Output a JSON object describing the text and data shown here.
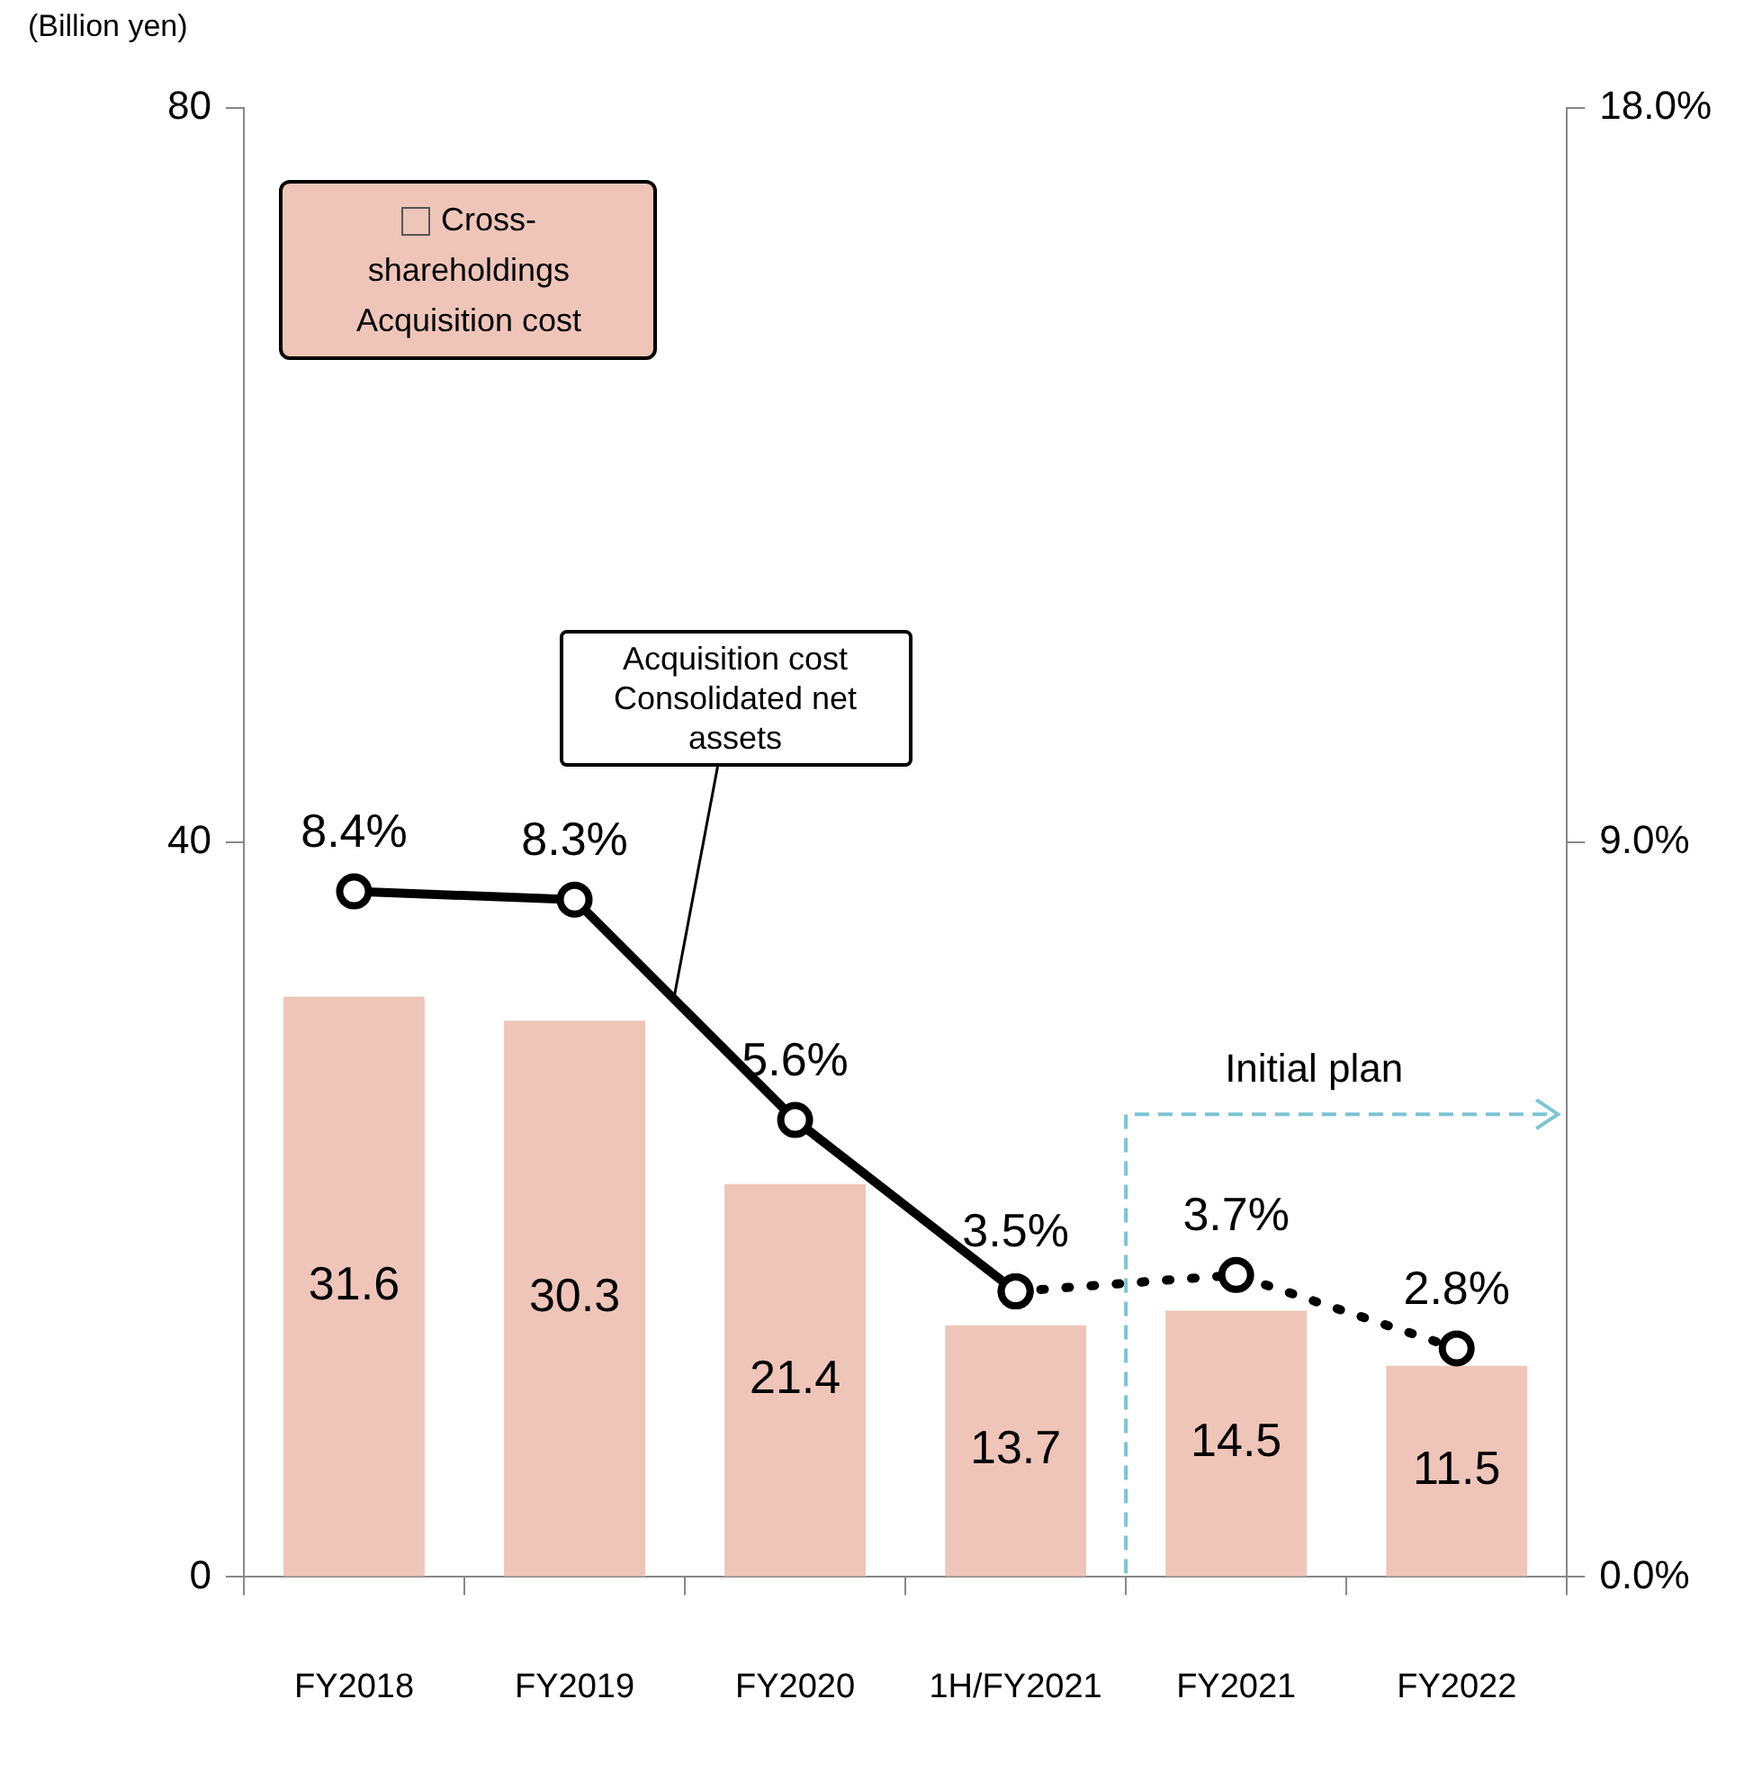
{
  "chart_data": {
    "type": "bar",
    "categories": [
      "FY2018",
      "FY2019",
      "FY2020",
      "1H/FY2021",
      "FY2021",
      "FY2022"
    ],
    "ylabel": "(Billion yen)",
    "ylim": [
      0,
      80
    ],
    "yticks": [
      0,
      40,
      80
    ],
    "y2lim": [
      0,
      18
    ],
    "y2ticks": [
      {
        "value": 0,
        "label": "0.0%"
      },
      {
        "value": 9,
        "label": "9.0%"
      },
      {
        "value": 18,
        "label": "18.0%"
      }
    ],
    "series": [
      {
        "name": "Cross-shareholdings Acquisition cost",
        "color": "#efc5b9",
        "values": [
          31.6,
          30.3,
          21.4,
          13.7,
          14.5,
          11.5
        ],
        "value_labels": [
          "31.6",
          "30.3",
          "21.4",
          "13.7",
          "14.5",
          "11.5"
        ]
      },
      {
        "name": "Acquisition cost Consolidated net assets",
        "type": "line",
        "axis": "y2",
        "color": "#000000",
        "line_style": "solid",
        "values": [
          8.4,
          8.3,
          5.6,
          3.5,
          null,
          null
        ],
        "value_labels": [
          "8.4%",
          "8.3%",
          "5.6%",
          "3.5%",
          null,
          null
        ]
      },
      {
        "type": "line",
        "axis": "y2",
        "color": "#000000",
        "line_style": "dotted",
        "values": [
          null,
          null,
          null,
          3.5,
          3.7,
          2.8
        ],
        "value_labels": [
          null,
          null,
          null,
          null,
          "3.7%",
          "2.8%"
        ]
      }
    ],
    "annotations": [
      "Initial plan"
    ],
    "marker": "circle",
    "grid": false,
    "legend": "top left"
  }
}
